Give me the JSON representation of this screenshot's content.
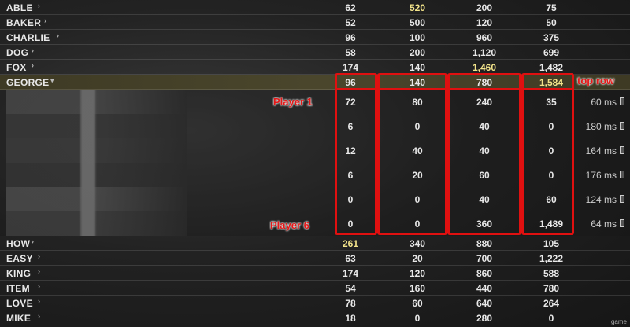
{
  "teams_top": [
    {
      "name": "ABLE",
      "values": [
        "62",
        "520",
        "200",
        "75"
      ],
      "highlight": [
        1
      ]
    },
    {
      "name": "BAKER",
      "values": [
        "52",
        "500",
        "120",
        "50"
      ],
      "highlight": []
    },
    {
      "name": "CHARLIE",
      "values": [
        "96",
        "100",
        "960",
        "375"
      ],
      "highlight": []
    },
    {
      "name": "DOG",
      "values": [
        "58",
        "200",
        "1,120",
        "699"
      ],
      "highlight": []
    },
    {
      "name": "FOX",
      "values": [
        "174",
        "140",
        "1,460",
        "1,482"
      ],
      "highlight": [
        2
      ]
    }
  ],
  "expanded_team": {
    "name": "GEORGE",
    "values": [
      "96",
      "140",
      "780",
      "1,584"
    ],
    "highlight": [
      3
    ]
  },
  "players": [
    {
      "values": [
        "72",
        "80",
        "240",
        "35"
      ],
      "ping": "60 ms"
    },
    {
      "values": [
        "6",
        "0",
        "40",
        "0"
      ],
      "ping": "180 ms"
    },
    {
      "values": [
        "12",
        "40",
        "40",
        "0"
      ],
      "ping": "164 ms"
    },
    {
      "values": [
        "6",
        "20",
        "60",
        "0"
      ],
      "ping": "176 ms"
    },
    {
      "values": [
        "0",
        "0",
        "40",
        "60"
      ],
      "ping": "124 ms"
    },
    {
      "values": [
        "0",
        "0",
        "360",
        "1,489"
      ],
      "ping": "64 ms"
    }
  ],
  "teams_bottom": [
    {
      "name": "HOW",
      "values": [
        "261",
        "340",
        "880",
        "105"
      ],
      "highlight": [
        0
      ]
    },
    {
      "name": "EASY",
      "values": [
        "63",
        "20",
        "700",
        "1,222"
      ],
      "highlight": []
    },
    {
      "name": "KING",
      "values": [
        "174",
        "120",
        "860",
        "588"
      ],
      "highlight": []
    },
    {
      "name": "ITEM",
      "values": [
        "54",
        "160",
        "440",
        "780"
      ],
      "highlight": []
    },
    {
      "name": "LOVE",
      "values": [
        "78",
        "60",
        "640",
        "264"
      ],
      "highlight": []
    },
    {
      "name": "MIKE",
      "values": [
        "18",
        "0",
        "280",
        "0"
      ],
      "highlight": []
    }
  ],
  "annotations": {
    "top_row": "top row",
    "player_first": "Player 1",
    "player_last": "Player 6"
  },
  "watermark": "game",
  "colors": {
    "highlight": "#f2e38a",
    "annotation": "#e01010"
  }
}
